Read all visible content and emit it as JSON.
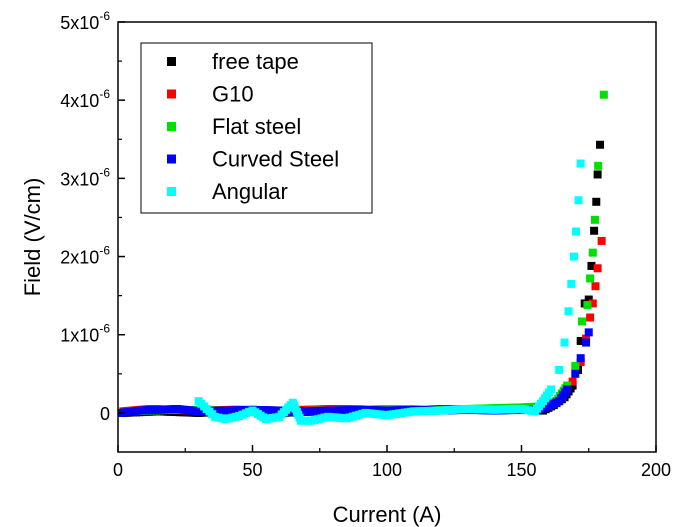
{
  "chart_data": {
    "type": "scatter",
    "xlabel": "Current (A)",
    "ylabel": "Field (V/cm)",
    "xlim": [
      0,
      200
    ],
    "ylim": [
      -5e-07,
      5e-06
    ],
    "x_ticks": [
      {
        "value": 0,
        "label": "0"
      },
      {
        "value": 50,
        "label": "50"
      },
      {
        "value": 100,
        "label": "100"
      },
      {
        "value": 150,
        "label": "150"
      },
      {
        "value": 200,
        "label": "200"
      }
    ],
    "y_ticks": [
      {
        "value": 0,
        "base": "0",
        "exp": ""
      },
      {
        "value": 1e-06,
        "base": "1x10",
        "exp": "-6"
      },
      {
        "value": 2e-06,
        "base": "2x10",
        "exp": "-6"
      },
      {
        "value": 3e-06,
        "base": "3x10",
        "exp": "-6"
      },
      {
        "value": 4e-06,
        "base": "4x10",
        "exp": "-6"
      },
      {
        "value": 5e-06,
        "base": "5x10",
        "exp": "-6"
      }
    ],
    "grid": false,
    "legend_position": "top-left",
    "series": [
      {
        "name": "free tape",
        "color": "#000000",
        "points": [
          [
            2,
            0.0
          ],
          [
            15,
            2e-08
          ],
          [
            30,
            0.0
          ],
          [
            45,
            3e-08
          ],
          [
            60,
            0.0
          ],
          [
            75,
            2e-08
          ],
          [
            90,
            1e-08
          ],
          [
            105,
            3e-08
          ],
          [
            120,
            5e-08
          ],
          [
            135,
            4e-08
          ],
          [
            150,
            6e-08
          ],
          [
            158,
            3e-08
          ],
          [
            162,
            1e-07
          ],
          [
            166,
            2e-07
          ],
          [
            169,
            3.5e-07
          ],
          [
            171,
            5.5e-07
          ],
          [
            172,
            9.2e-07
          ],
          [
            173.5,
            1.4e-06
          ],
          [
            175,
            1.45e-06
          ],
          [
            176,
            1.88e-06
          ],
          [
            177,
            2.33e-06
          ],
          [
            177.8,
            2.7e-06
          ],
          [
            178.3,
            3.05e-06
          ],
          [
            179.2,
            3.43e-06
          ]
        ]
      },
      {
        "name": "G10",
        "color": "#ff0000",
        "points": [
          [
            2,
            2e-08
          ],
          [
            12,
            5e-08
          ],
          [
            28,
            3e-08
          ],
          [
            44,
            4e-08
          ],
          [
            60,
            3e-08
          ],
          [
            80,
            5e-08
          ],
          [
            100,
            4e-08
          ],
          [
            118,
            3e-08
          ],
          [
            135,
            5e-08
          ],
          [
            150,
            6e-08
          ],
          [
            160,
            8e-08
          ],
          [
            165,
            2e-07
          ],
          [
            169,
            4e-07
          ],
          [
            172,
            6.5e-07
          ],
          [
            174,
            9.5e-07
          ],
          [
            175.5,
            1.22e-06
          ],
          [
            176.5,
            1.4e-06
          ],
          [
            177.5,
            1.62e-06
          ],
          [
            178.3,
            1.85e-06
          ],
          [
            179.8,
            2.2e-06
          ]
        ]
      },
      {
        "name": "Flat steel",
        "color": "#00e000",
        "points": [
          [
            5,
            2e-08
          ],
          [
            20,
            4e-08
          ],
          [
            40,
            3e-08
          ],
          [
            60,
            2e-08
          ],
          [
            80,
            3e-08
          ],
          [
            100,
            5e-08
          ],
          [
            120,
            4e-08
          ],
          [
            140,
            6e-08
          ],
          [
            150,
            7e-08
          ],
          [
            156,
            8e-08
          ],
          [
            163,
            1.5e-07
          ],
          [
            167,
            3.5e-07
          ],
          [
            170,
            6e-07
          ],
          [
            172.5,
            1.17e-06
          ],
          [
            174.5,
            1.38e-06
          ],
          [
            175.5,
            1.72e-06
          ],
          [
            176.5,
            2.05e-06
          ],
          [
            177.3,
            2.47e-06
          ],
          [
            178.5,
            3.16e-06
          ],
          [
            180.6,
            4.07e-06
          ]
        ]
      },
      {
        "name": "Curved Steel",
        "color": "#0000ff",
        "points": [
          [
            1,
            0.0
          ],
          [
            8,
            3e-08
          ],
          [
            15,
            4e-08
          ],
          [
            22,
            5e-08
          ],
          [
            30,
            2e-08
          ],
          [
            40,
            3e-08
          ],
          [
            50,
            4e-08
          ],
          [
            60,
            3e-08
          ],
          [
            70,
            2e-08
          ],
          [
            80,
            3e-08
          ],
          [
            90,
            4e-08
          ],
          [
            100,
            3e-08
          ],
          [
            110,
            4e-08
          ],
          [
            120,
            3e-08
          ],
          [
            130,
            4e-08
          ],
          [
            140,
            3e-08
          ],
          [
            150,
            4e-08
          ],
          [
            156,
            4e-08
          ],
          [
            160,
            8e-08
          ],
          [
            164,
            1.5e-07
          ],
          [
            167,
            3e-07
          ],
          [
            170,
            5e-07
          ],
          [
            172,
            7e-07
          ],
          [
            174,
            9e-07
          ],
          [
            175,
            1.03e-06
          ]
        ]
      },
      {
        "name": "Angular",
        "color": "#00ffff",
        "points": [
          [
            30,
            1.5e-07
          ],
          [
            33,
            5e-08
          ],
          [
            36,
            -5e-08
          ],
          [
            40,
            -8e-08
          ],
          [
            45,
            -4e-08
          ],
          [
            50,
            3e-08
          ],
          [
            55,
            -8e-08
          ],
          [
            60,
            -5e-08
          ],
          [
            65,
            1.3e-07
          ],
          [
            68,
            -1e-07
          ],
          [
            72,
            -1e-07
          ],
          [
            78,
            -5e-08
          ],
          [
            85,
            -7e-08
          ],
          [
            92,
            0.0
          ],
          [
            100,
            -3e-08
          ],
          [
            110,
            2e-08
          ],
          [
            120,
            3e-08
          ],
          [
            130,
            5e-08
          ],
          [
            140,
            4e-08
          ],
          [
            150,
            5e-08
          ],
          [
            155,
            2e-08
          ],
          [
            158,
            1.5e-07
          ],
          [
            161,
            3e-07
          ],
          [
            164,
            5.5e-07
          ],
          [
            166,
            9e-07
          ],
          [
            167.5,
            1.3e-06
          ],
          [
            168.5,
            1.65e-06
          ],
          [
            169.5,
            2e-06
          ],
          [
            170.3,
            2.32e-06
          ],
          [
            171.2,
            2.72e-06
          ],
          [
            172,
            3.19e-06
          ]
        ]
      }
    ]
  }
}
